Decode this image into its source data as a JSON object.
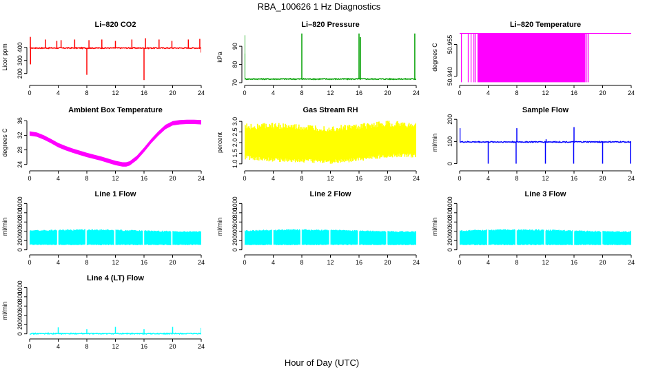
{
  "figure": {
    "title": "RBA_100626  1 Hz Diagnostics",
    "xlabel": "Hour of Day (UTC)"
  },
  "chart_data": [
    {
      "type": "line",
      "title": "Li–820 CO2",
      "ylabel": "Licor ppm",
      "color": "#ff0000",
      "xlim": [
        0,
        24
      ],
      "xticks": [
        0,
        4,
        8,
        12,
        16,
        20,
        24
      ],
      "ylim": [
        130,
        520
      ],
      "yticks": [
        200,
        300,
        400
      ],
      "series": [
        {
          "baseline": 395,
          "spikes": [
            [
              0.1,
              480
            ],
            [
              0.12,
              270
            ],
            [
              2.2,
              460
            ],
            [
              3.8,
              450
            ],
            [
              4.4,
              455
            ],
            [
              6.3,
              460
            ],
            [
              8.0,
              190
            ],
            [
              8.3,
              455
            ],
            [
              10.1,
              460
            ],
            [
              12.0,
              450
            ],
            [
              14.3,
              460
            ],
            [
              16.0,
              150
            ],
            [
              16.2,
              470
            ],
            [
              18.1,
              460
            ],
            [
              19.9,
              450
            ],
            [
              22.2,
              460
            ],
            [
              23.8,
              465
            ],
            [
              24.0,
              360
            ]
          ]
        }
      ]
    },
    {
      "type": "line",
      "title": "Li–820 Pressure",
      "ylabel": "kPa",
      "color": "#00a000",
      "xlim": [
        0,
        24
      ],
      "xticks": [
        0,
        4,
        8,
        12,
        16,
        20,
        24
      ],
      "ylim": [
        70,
        98
      ],
      "yticks": [
        70,
        80,
        90
      ],
      "series": [
        {
          "baseline": 72,
          "spikes": [
            [
              0.0,
              96
            ],
            [
              0.02,
              86
            ],
            [
              8.0,
              97
            ],
            [
              16.0,
              97
            ],
            [
              16.2,
              95
            ],
            [
              23.8,
              97
            ]
          ]
        }
      ]
    },
    {
      "type": "line",
      "title": "Li–820 Temperature",
      "ylabel": "degrees C",
      "color": "#ff00ff",
      "xlim": [
        0,
        24
      ],
      "xticks": [
        0,
        4,
        8,
        12,
        16,
        20,
        24
      ],
      "ylim": [
        50.937,
        50.961
      ],
      "yticks": [
        50.94,
        50.955
      ],
      "yticklabels": [
        "50.940",
        "50.955"
      ],
      "series": [
        {
          "high": 50.9602,
          "low": 50.9372,
          "dense_range": [
            2.5,
            17.6
          ],
          "isolated_drops": [
            0.25,
            1.2,
            1.6,
            2.0,
            2.2,
            17.8,
            18.0
          ]
        }
      ]
    },
    {
      "type": "line",
      "title": "Ambient Box Temperature",
      "ylabel": "degrees C",
      "color": "#ff00ff",
      "xlim": [
        0,
        24
      ],
      "xticks": [
        0,
        4,
        8,
        12,
        16,
        20,
        24
      ],
      "ylim": [
        23,
        37
      ],
      "yticks": [
        24,
        28,
        32,
        36
      ],
      "series": [
        {
          "x": [
            0,
            1,
            2,
            3,
            4,
            5,
            6,
            7,
            8,
            9,
            10,
            11,
            12,
            13,
            13.5,
            14,
            15,
            16,
            17,
            18,
            19,
            20,
            21,
            22,
            23,
            24
          ],
          "y": [
            32.5,
            32.2,
            31.4,
            30.4,
            29.3,
            28.5,
            27.8,
            27.2,
            26.6,
            26.1,
            25.6,
            25.0,
            24.4,
            24.0,
            24.0,
            24.3,
            25.8,
            28.0,
            30.4,
            32.5,
            34.3,
            35.3,
            35.6,
            35.7,
            35.7,
            35.6
          ],
          "band": 0.6
        }
      ]
    },
    {
      "type": "line",
      "title": "Gas Stream RH",
      "ylabel": "percent",
      "color": "#ffff00",
      "xlim": [
        0,
        24
      ],
      "xticks": [
        0,
        4,
        8,
        12,
        16,
        20,
        24
      ],
      "ylim": [
        0.8,
        3.2
      ],
      "yticks": [
        1.0,
        1.5,
        2.0,
        2.5,
        3.0
      ],
      "yticklabels": [
        "1.0",
        "1.5",
        "2.0",
        "2.5",
        "3.0"
      ],
      "series": [
        {
          "x": [
            0,
            4,
            8,
            12,
            16,
            20,
            24
          ],
          "upper": [
            2.75,
            2.8,
            2.7,
            2.65,
            2.75,
            2.9,
            2.8
          ],
          "lower": [
            1.3,
            1.2,
            1.15,
            1.1,
            1.2,
            1.4,
            1.4
          ]
        }
      ]
    },
    {
      "type": "line",
      "title": "Sample Flow",
      "ylabel": "ml/min",
      "color": "#0000ff",
      "xlim": [
        0,
        24
      ],
      "xticks": [
        0,
        4,
        8,
        12,
        16,
        20,
        24
      ],
      "ylim": [
        -20,
        210
      ],
      "yticks": [
        0,
        100,
        200
      ],
      "series": [
        {
          "baseline": 98,
          "spikes": [
            [
              0.05,
              160
            ],
            [
              4.0,
              0
            ],
            [
              8.0,
              160
            ],
            [
              7.9,
              0
            ],
            [
              12.0,
              0
            ],
            [
              12.1,
              110
            ],
            [
              16.0,
              165
            ],
            [
              15.95,
              0
            ],
            [
              20.0,
              0
            ],
            [
              23.9,
              0
            ]
          ]
        }
      ]
    },
    {
      "type": "line",
      "title": "Line 1 Flow",
      "ylabel": "ml/min",
      "color": "#00ffff",
      "xlim": [
        0,
        24
      ],
      "xticks": [
        0,
        4,
        8,
        12,
        16,
        20,
        24
      ],
      "ylim": [
        -50,
        1050
      ],
      "yticks": [
        0,
        200,
        400,
        600,
        800,
        1000
      ],
      "series": [
        {
          "high": 410,
          "low": 110,
          "gaps": [
            3.9,
            7.9,
            11.9,
            15.9,
            19.9
          ]
        }
      ]
    },
    {
      "type": "line",
      "title": "Line 2 Flow",
      "ylabel": "ml/min",
      "color": "#00ffff",
      "xlim": [
        0,
        24
      ],
      "xticks": [
        0,
        4,
        8,
        12,
        16,
        20,
        24
      ],
      "ylim": [
        -50,
        1050
      ],
      "yticks": [
        0,
        200,
        400,
        600,
        800,
        1000
      ],
      "series": [
        {
          "high": 410,
          "low": 110,
          "gaps": [
            3.9,
            7.9,
            11.9,
            15.9,
            19.9
          ]
        }
      ]
    },
    {
      "type": "line",
      "title": "Line 3 Flow",
      "ylabel": "ml/min",
      "color": "#00ffff",
      "xlim": [
        0,
        24
      ],
      "xticks": [
        0,
        4,
        8,
        12,
        16,
        20,
        24
      ],
      "ylim": [
        -50,
        1050
      ],
      "yticks": [
        0,
        200,
        400,
        600,
        800,
        1000
      ],
      "series": [
        {
          "high": 410,
          "low": 110,
          "gaps": [
            3.9,
            7.9,
            11.9,
            15.9,
            19.9
          ]
        }
      ]
    },
    {
      "type": "line",
      "title": "Line 4 (LT) Flow",
      "ylabel": "ml/min",
      "color": "#00ffff",
      "xlim": [
        0,
        24
      ],
      "xticks": [
        0,
        4,
        8,
        12,
        16,
        20,
        24
      ],
      "ylim": [
        -50,
        1050
      ],
      "yticks": [
        0,
        200,
        400,
        600,
        800,
        1000
      ],
      "series": [
        {
          "baseline": 5,
          "spikes": [
            [
              4.0,
              140
            ],
            [
              8.0,
              100
            ],
            [
              12.0,
              150
            ],
            [
              16.0,
              100
            ],
            [
              20.0,
              150
            ],
            [
              24.0,
              130
            ]
          ]
        }
      ]
    }
  ]
}
